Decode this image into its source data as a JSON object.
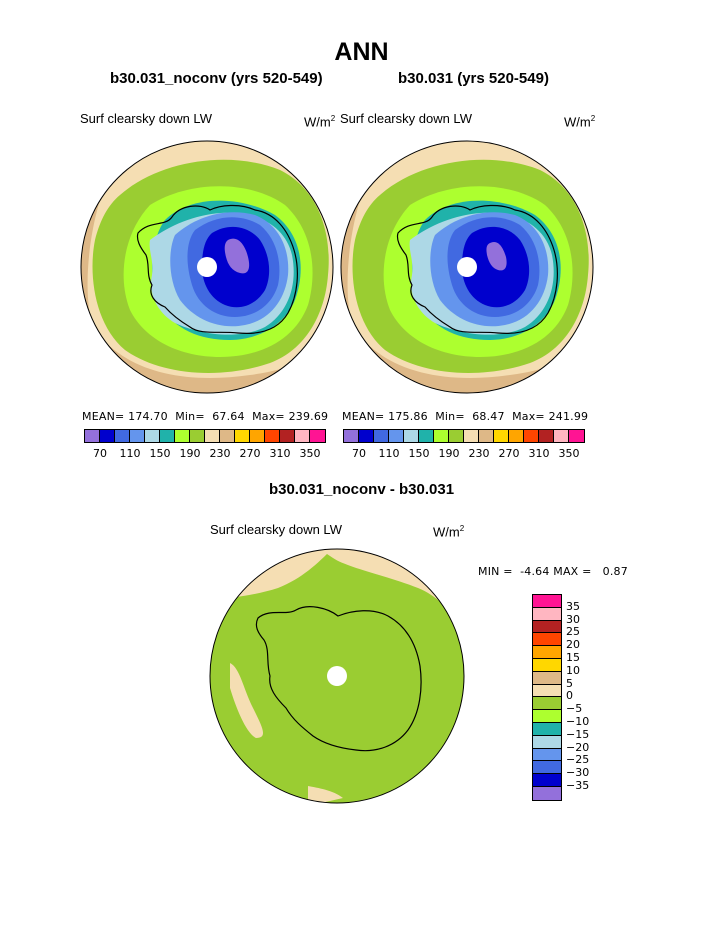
{
  "page": {
    "season": "ANN"
  },
  "left_panel": {
    "title": "b30.031_noconv (yrs 520-549)",
    "variable": "Surf clearsky down LW",
    "units": "W/m",
    "units_exp": "2",
    "stats": {
      "mean_label": "MEAN=",
      "mean": "174.70",
      "min_label": "Min=",
      "min": "67.64",
      "max_label": "Max=",
      "max": "239.69"
    }
  },
  "right_panel": {
    "title": "b30.031 (yrs 520-549)",
    "variable": "Surf clearsky down LW",
    "units": "W/m",
    "units_exp": "2",
    "stats": {
      "mean_label": "MEAN=",
      "mean": "175.86",
      "min_label": "Min=",
      "min": "68.47",
      "max_label": "Max=",
      "max": "241.99"
    }
  },
  "colorbar": {
    "colors": [
      "#9370db",
      "#0000cd",
      "#4169e1",
      "#6495ed",
      "#add8e6",
      "#20b2aa",
      "#adff2f",
      "#9acd32",
      "#f5deb3",
      "#deb887",
      "#ffd700",
      "#ffa500",
      "#ff4500",
      "#b22222",
      "#ffb6c1",
      "#ff1493"
    ],
    "labels": [
      "70",
      "110",
      "150",
      "190",
      "230",
      "270",
      "310",
      "350"
    ]
  },
  "diff_panel": {
    "title": "b30.031_noconv - b30.031",
    "variable": "Surf clearsky down LW",
    "units": "W/m",
    "units_exp": "2",
    "stats": {
      "min_label": "MIN =",
      "min": "-4.64",
      "max_label": "MAX =",
      "max": "0.87"
    },
    "colorbar": {
      "colors_top_to_bottom": [
        "#ff1493",
        "#ffb6c1",
        "#b22222",
        "#ff4500",
        "#ffa500",
        "#ffd700",
        "#deb887",
        "#f5deb3",
        "#9acd32",
        "#adff2f",
        "#20b2aa",
        "#add8e6",
        "#6495ed",
        "#4169e1",
        "#0000cd",
        "#9370db"
      ],
      "labels_top_to_bottom": [
        "35",
        "30",
        "25",
        "20",
        "15",
        "10",
        "5",
        "0",
        "−5",
        "−10",
        "−15",
        "−20",
        "−25",
        "−30",
        "−35"
      ]
    }
  },
  "map_colors": {
    "ocean_outer": "#f5deb3",
    "ocean_tan": "#deb887",
    "green": "#9acd32",
    "light_green": "#adff2f",
    "teal": "#20b2aa",
    "light_blue": "#add8e6",
    "cornflower": "#6495ed",
    "royal_blue": "#4169e1",
    "dark_blue": "#0000cd",
    "purple": "#9370db",
    "pole": "#ffffff"
  }
}
